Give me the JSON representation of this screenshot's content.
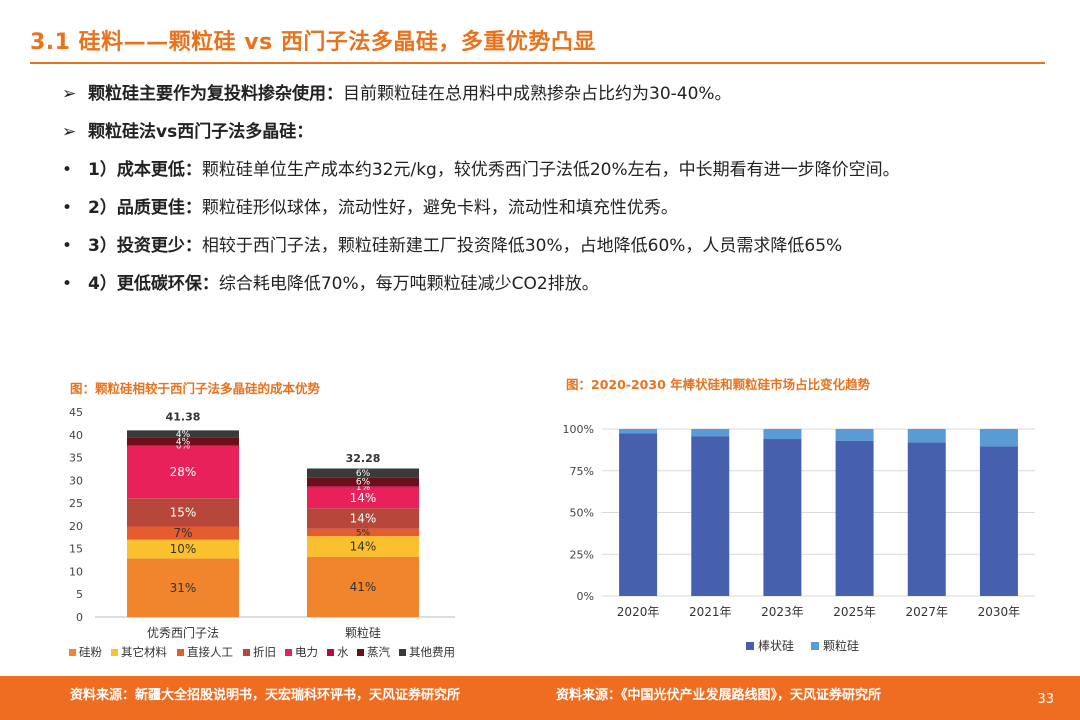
{
  "slide": {
    "title": "3.1 硅料——颗粒硅 vs 西门子法多晶硅，多重优势凸显",
    "page_number": "33"
  },
  "bullets": [
    {
      "marker": "➢",
      "bold": "颗粒硅主要作为复投料掺杂使用：",
      "text": "目前颗粒硅在总用料中成熟掺杂占比约为30-40%。"
    },
    {
      "marker": "➢",
      "bold": "颗粒硅法vs西门子法多晶硅：",
      "text": ""
    },
    {
      "marker": "•",
      "bold": "1）成本更低：",
      "text": "颗粒硅单位生产成本约32元/kg，较优秀西门子法低20%左右，中长期看有进一步降价空间。"
    },
    {
      "marker": "•",
      "bold": "2）品质更佳：",
      "text": "颗粒硅形似球体，流动性好，避免卡料，流动性和填充性优秀。"
    },
    {
      "marker": "•",
      "bold": "3）投资更少：",
      "text": "相较于西门子法，颗粒硅新建工厂投资降低30%，占地降低60%，人员需求降低65%"
    },
    {
      "marker": "•",
      "bold": "4）更低碳环保：",
      "text": "综合耗电降低70%，每万吨颗粒硅减少CO2排放。"
    }
  ],
  "charts": {
    "left_title": "图：颗粒硅相较于西门子法多晶硅的成本优势",
    "right_title": "图：2020-2030 年棒状硅和颗粒硅市场占比变化趋势"
  },
  "footer": {
    "left_source": "资料来源：新疆大全招股说明书，天宏瑞科环评书，天风证券研究所",
    "right_source": "资料来源：《中国光伏产业发展路线图》，天风证券研究所"
  },
  "chart_data": [
    {
      "type": "bar",
      "stacked": true,
      "categories": [
        "优秀西门子法",
        "颗粒硅"
      ],
      "totals": [
        41.38,
        32.28
      ],
      "ylim": [
        0,
        45
      ],
      "yticks": [
        0,
        5,
        10,
        15,
        20,
        25,
        30,
        35,
        40,
        45
      ],
      "legend_position": "bottom",
      "series": [
        {
          "name": "硅粉",
          "color": "#f0852d",
          "pct": [
            31,
            41
          ],
          "labels": [
            "31%",
            "41%"
          ]
        },
        {
          "name": "其它材料",
          "color": "#fbc02d",
          "pct": [
            10,
            14
          ],
          "labels": [
            "10%",
            "14%"
          ]
        },
        {
          "name": "直接人工",
          "color": "#e65c2e",
          "pct": [
            7,
            5
          ],
          "labels": [
            "7%",
            "5%"
          ]
        },
        {
          "name": "折旧",
          "color": "#b7473a",
          "pct": [
            15,
            14
          ],
          "labels": [
            "15%",
            "14%"
          ]
        },
        {
          "name": "电力",
          "color": "#e8215a",
          "pct": [
            28,
            14
          ],
          "labels": [
            "28%",
            "14%"
          ]
        },
        {
          "name": "水",
          "color": "#b0103f",
          "pct": [
            0,
            1
          ],
          "labels": [
            "0%",
            "1%"
          ]
        },
        {
          "name": "蒸汽",
          "color": "#6b0f1a",
          "pct": [
            4,
            6
          ],
          "labels": [
            "4%",
            "6%"
          ]
        },
        {
          "name": "其他费用",
          "color": "#3a3a3a",
          "pct": [
            4,
            6
          ],
          "labels": [
            "4%",
            "6%"
          ]
        }
      ]
    },
    {
      "type": "bar",
      "stacked": true,
      "percent": true,
      "categories": [
        "2020年",
        "2021年",
        "2023年",
        "2025年",
        "2027年",
        "2030年"
      ],
      "ylim": [
        0,
        100
      ],
      "yticks": [
        "0%",
        "25%",
        "50%",
        "75%",
        "100%"
      ],
      "legend_position": "bottom",
      "series": [
        {
          "name": "棒状硅",
          "color": "#4660ad",
          "values": [
            97.5,
            95.5,
            94,
            93,
            92,
            89.5
          ]
        },
        {
          "name": "颗粒硅",
          "color": "#5b9bd5",
          "values": [
            2.5,
            4.5,
            6,
            7,
            8,
            10.5
          ]
        }
      ]
    }
  ]
}
